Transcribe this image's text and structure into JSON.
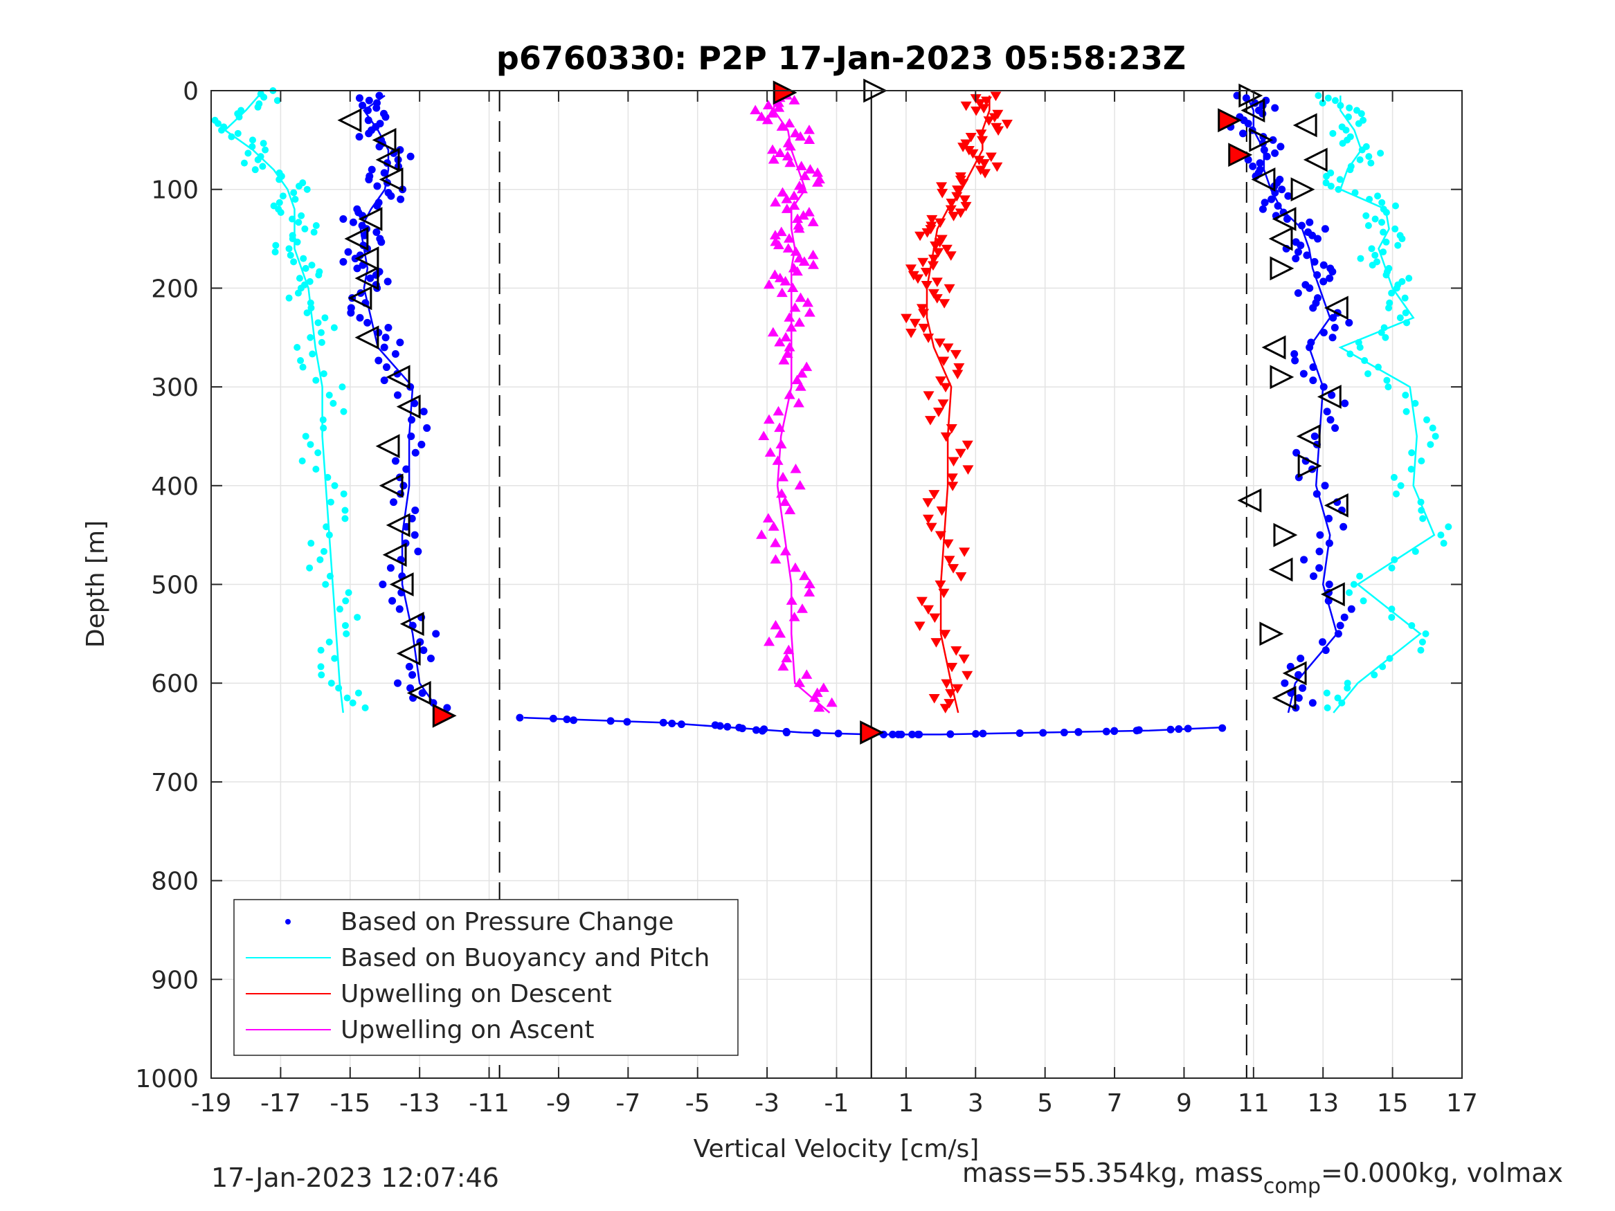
{
  "chart_data": {
    "type": "scatter",
    "title": "p6760330: P2P 17-Jan-2023 05:58:23Z",
    "xlabel": "Vertical Velocity [cm/s]",
    "ylabel": "Depth [m]",
    "xlim": [
      -19,
      17
    ],
    "ylim": [
      0,
      1000
    ],
    "y_reversed": true,
    "grid": true,
    "legend_position": "bottom-left",
    "x_ticks": [
      "-19",
      "-17",
      "-15",
      "-13",
      "-11",
      "-9",
      "-7",
      "-5",
      "-3",
      "-1",
      "1",
      "3",
      "5",
      "7",
      "9",
      "11",
      "13",
      "15",
      "17"
    ],
    "y_ticks": [
      "0",
      "100",
      "200",
      "300",
      "400",
      "500",
      "600",
      "700",
      "800",
      "900",
      "1000"
    ],
    "reference_lines": {
      "dashed_x": [
        -10.7,
        10.8
      ],
      "solid_x": [
        0
      ]
    },
    "legend": [
      {
        "label": "Based on Pressure Change",
        "color": "#0000ff",
        "style": "dot"
      },
      {
        "label": "Based on Buoyancy and Pitch",
        "color": "#00ffff",
        "style": "line"
      },
      {
        "label": "Upwelling on Descent",
        "color": "#ff0000",
        "style": "line"
      },
      {
        "label": "Upwelling on Ascent",
        "color": "#ff00ff",
        "style": "line"
      }
    ],
    "series": [
      {
        "name": "Based on Buoyancy and Pitch (descent)",
        "color": "#00ffff",
        "depth": [
          0,
          20,
          40,
          60,
          80,
          100,
          120,
          140,
          160,
          180,
          200,
          230,
          260,
          300,
          350,
          400,
          450,
          500,
          550,
          600,
          630
        ],
        "velocity": [
          -17.5,
          -18.0,
          -18.6,
          -17.8,
          -17.2,
          -16.8,
          -16.6,
          -16.6,
          -16.6,
          -16.4,
          -16.2,
          -16.1,
          -16.0,
          -15.8,
          -15.8,
          -15.7,
          -15.6,
          -15.5,
          -15.4,
          -15.3,
          -15.2
        ]
      },
      {
        "name": "Based on Pressure Change (descent)",
        "color": "#0000ff",
        "depth": [
          5,
          20,
          40,
          60,
          80,
          100,
          120,
          140,
          160,
          180,
          200,
          230,
          260,
          300,
          350,
          400,
          450,
          500,
          550,
          600,
          630
        ],
        "velocity": [
          -14.0,
          -14.6,
          -14.2,
          -13.9,
          -13.9,
          -14.0,
          -14.4,
          -14.7,
          -14.6,
          -14.5,
          -14.6,
          -14.4,
          -14.2,
          -13.2,
          -13.3,
          -13.3,
          -13.5,
          -13.5,
          -13.2,
          -13.0,
          -12.4
        ]
      },
      {
        "name": "Upwelling on Descent",
        "color": "#ff0000",
        "depth": [
          5,
          20,
          40,
          60,
          80,
          100,
          120,
          140,
          160,
          180,
          200,
          230,
          260,
          300,
          350,
          400,
          450,
          500,
          550,
          600,
          630
        ],
        "velocity": [
          3.4,
          3.4,
          3.2,
          3.2,
          2.9,
          2.6,
          2.2,
          1.9,
          1.8,
          1.7,
          1.6,
          1.6,
          1.8,
          2.3,
          2.2,
          2.2,
          2.1,
          2.0,
          2.0,
          2.3,
          2.5
        ]
      },
      {
        "name": "Upwelling on Ascent",
        "color": "#ff00ff",
        "depth": [
          5,
          20,
          40,
          60,
          80,
          100,
          120,
          140,
          160,
          180,
          200,
          230,
          260,
          300,
          350,
          400,
          450,
          500,
          550,
          600,
          630
        ],
        "velocity": [
          -2.8,
          -2.8,
          -2.4,
          -2.3,
          -2.1,
          -1.9,
          -2.3,
          -2.3,
          -2.2,
          -2.3,
          -2.3,
          -2.3,
          -2.3,
          -2.3,
          -2.6,
          -2.7,
          -2.5,
          -2.3,
          -2.3,
          -2.2,
          -1.2
        ]
      },
      {
        "name": "Based on Pressure Change (ascent)",
        "color": "#0000ff",
        "depth": [
          5,
          20,
          40,
          60,
          80,
          100,
          120,
          140,
          160,
          180,
          200,
          230,
          260,
          300,
          350,
          400,
          450,
          500,
          550,
          600,
          630
        ],
        "velocity": [
          10.8,
          11.0,
          11.0,
          11.3,
          11.3,
          11.5,
          11.8,
          12.4,
          12.6,
          12.7,
          12.9,
          13.2,
          12.6,
          13.0,
          12.9,
          12.8,
          13.2,
          13.0,
          13.4,
          12.2,
          12.0
        ]
      },
      {
        "name": "Based on Buoyancy and Pitch (ascent)",
        "color": "#00ffff",
        "depth": [
          5,
          20,
          40,
          60,
          80,
          100,
          120,
          140,
          160,
          180,
          200,
          230,
          260,
          300,
          350,
          400,
          450,
          500,
          550,
          600,
          630
        ],
        "velocity": [
          13.5,
          13.5,
          13.9,
          14.1,
          13.7,
          13.5,
          14.8,
          14.9,
          14.6,
          14.8,
          15.0,
          15.6,
          13.5,
          15.5,
          15.7,
          15.6,
          16.2,
          14.0,
          15.8,
          14.0,
          13.3
        ]
      },
      {
        "name": "Based on Pressure Change (bottom)",
        "color": "#0000ff",
        "depth": [
          635,
          640,
          645,
          650,
          652,
          652,
          650,
          648,
          645
        ],
        "velocity": [
          -10,
          -6,
          -4,
          -2,
          0,
          2,
          5,
          8,
          10
        ]
      }
    ],
    "markers": {
      "descent_triangles": {
        "depth": [
          30,
          50,
          70,
          90,
          130,
          150,
          170,
          190,
          210,
          250,
          290,
          320,
          360,
          400,
          440,
          470,
          500,
          540,
          570,
          610
        ],
        "velocity": [
          -15.0,
          -14.0,
          -13.9,
          -13.8,
          -14.4,
          -14.8,
          -14.5,
          -14.5,
          -14.7,
          -14.5,
          -13.6,
          -13.3,
          -13.9,
          -13.8,
          -13.6,
          -13.7,
          -13.5,
          -13.2,
          -13.3,
          -13.0
        ]
      },
      "ascent_triangles": {
        "depth": [
          5,
          20,
          35,
          50,
          70,
          90,
          100,
          130,
          150,
          180,
          220,
          260,
          290,
          310,
          350,
          380,
          415,
          420,
          450,
          485,
          510,
          550,
          590,
          615
        ],
        "velocity": [
          10.9,
          11.0,
          12.5,
          11.2,
          12.8,
          11.3,
          12.4,
          11.9,
          11.8,
          11.8,
          13.4,
          11.6,
          11.8,
          13.2,
          12.6,
          12.6,
          10.9,
          13.4,
          11.9,
          11.8,
          13.3,
          11.5,
          12.2,
          11.9
        ]
      },
      "red_highlight": [
        {
          "depth": 2,
          "velocity": -2.5
        },
        {
          "depth": 30,
          "velocity": 10.3
        },
        {
          "depth": 65,
          "velocity": 10.6
        },
        {
          "depth": 633,
          "velocity": -12.3
        },
        {
          "depth": 650,
          "velocity": 0.0
        }
      ],
      "outlined_triangles": [
        {
          "depth": 0,
          "velocity": 0.1
        }
      ]
    },
    "footer": {
      "timestamp": "17-Jan-2023 12:07:46",
      "mass_text": "mass=55.354kg, mass",
      "mass_sub": "comp",
      "mass_rest": "=0.000kg, volmax"
    }
  }
}
